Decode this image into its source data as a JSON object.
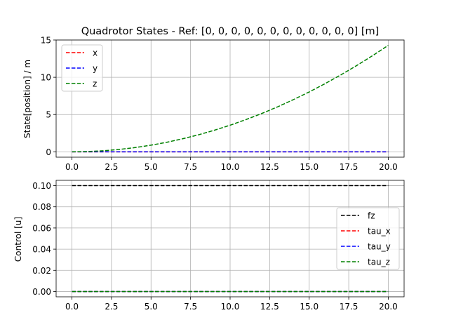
{
  "figure": {
    "background": "#ffffff",
    "grid_color": "#b0b0b0"
  },
  "chart_data": [
    {
      "type": "line",
      "title": "Quadrotor States - Ref: [0, 0, 0, 0, 0, 0, 0, 0, 0, 0, 0, 0] [m]",
      "xlabel": "",
      "ylabel": "State[position] / m",
      "xlim": [
        -1.0,
        21.0
      ],
      "ylim": [
        -0.72,
        15.0
      ],
      "xticks": [
        0.0,
        2.5,
        5.0,
        7.5,
        10.0,
        12.5,
        15.0,
        17.5,
        20.0
      ],
      "xtick_labels": [
        "0.0",
        "2.5",
        "5.0",
        "7.5",
        "10.0",
        "12.5",
        "15.0",
        "17.5",
        "20.0"
      ],
      "yticks": [
        0,
        5,
        10,
        15
      ],
      "ytick_labels": [
        "0",
        "5",
        "10",
        "15"
      ],
      "grid": true,
      "legend_position": "upper-left",
      "x": [
        0,
        1,
        2,
        3,
        4,
        5,
        6,
        7,
        8,
        9,
        10,
        11,
        12,
        13,
        14,
        15,
        16,
        17,
        18,
        19,
        20
      ],
      "series": [
        {
          "name": "x",
          "color": "#ff0000",
          "dash": "dashed",
          "values": [
            0,
            0,
            0,
            0,
            0,
            0,
            0,
            0,
            0,
            0,
            0,
            0,
            0,
            0,
            0,
            0,
            0,
            0,
            0,
            0,
            0
          ]
        },
        {
          "name": "y",
          "color": "#0000ff",
          "dash": "dashed",
          "values": [
            0,
            0,
            0,
            0,
            0,
            0,
            0,
            0,
            0,
            0,
            0,
            0,
            0,
            0,
            0,
            0,
            0,
            0,
            0,
            0,
            0
          ]
        },
        {
          "name": "z",
          "color": "#008000",
          "dash": "dashed",
          "values": [
            0,
            0.04,
            0.14,
            0.32,
            0.57,
            0.89,
            1.28,
            1.75,
            2.28,
            2.89,
            3.57,
            4.32,
            5.14,
            6.03,
            7.0,
            8.03,
            9.14,
            10.32,
            11.57,
            12.89,
            14.28
          ]
        }
      ]
    },
    {
      "type": "line",
      "title": "",
      "xlabel": "",
      "ylabel": "Control [u]",
      "xlim": [
        -1.0,
        21.0
      ],
      "ylim": [
        -0.005,
        0.105
      ],
      "xticks": [
        0.0,
        2.5,
        5.0,
        7.5,
        10.0,
        12.5,
        15.0,
        17.5,
        20.0
      ],
      "xtick_labels": [
        "0.0",
        "2.5",
        "5.0",
        "7.5",
        "10.0",
        "12.5",
        "15.0",
        "17.5",
        "20.0"
      ],
      "yticks": [
        0.0,
        0.02,
        0.04,
        0.06,
        0.08,
        0.1
      ],
      "ytick_labels": [
        "0.00",
        "0.02",
        "0.04",
        "0.06",
        "0.08",
        "0.10"
      ],
      "grid": true,
      "legend_position": "center-right",
      "x": [
        0,
        20
      ],
      "series": [
        {
          "name": "fz",
          "color": "#000000",
          "dash": "dashed",
          "values": [
            0.1,
            0.1
          ]
        },
        {
          "name": "tau_x",
          "color": "#ff0000",
          "dash": "dashed",
          "values": [
            0,
            0
          ]
        },
        {
          "name": "tau_y",
          "color": "#0000ff",
          "dash": "dashed",
          "values": [
            0,
            0
          ]
        },
        {
          "name": "tau_z",
          "color": "#008000",
          "dash": "dashed",
          "values": [
            0,
            0
          ]
        }
      ]
    }
  ]
}
